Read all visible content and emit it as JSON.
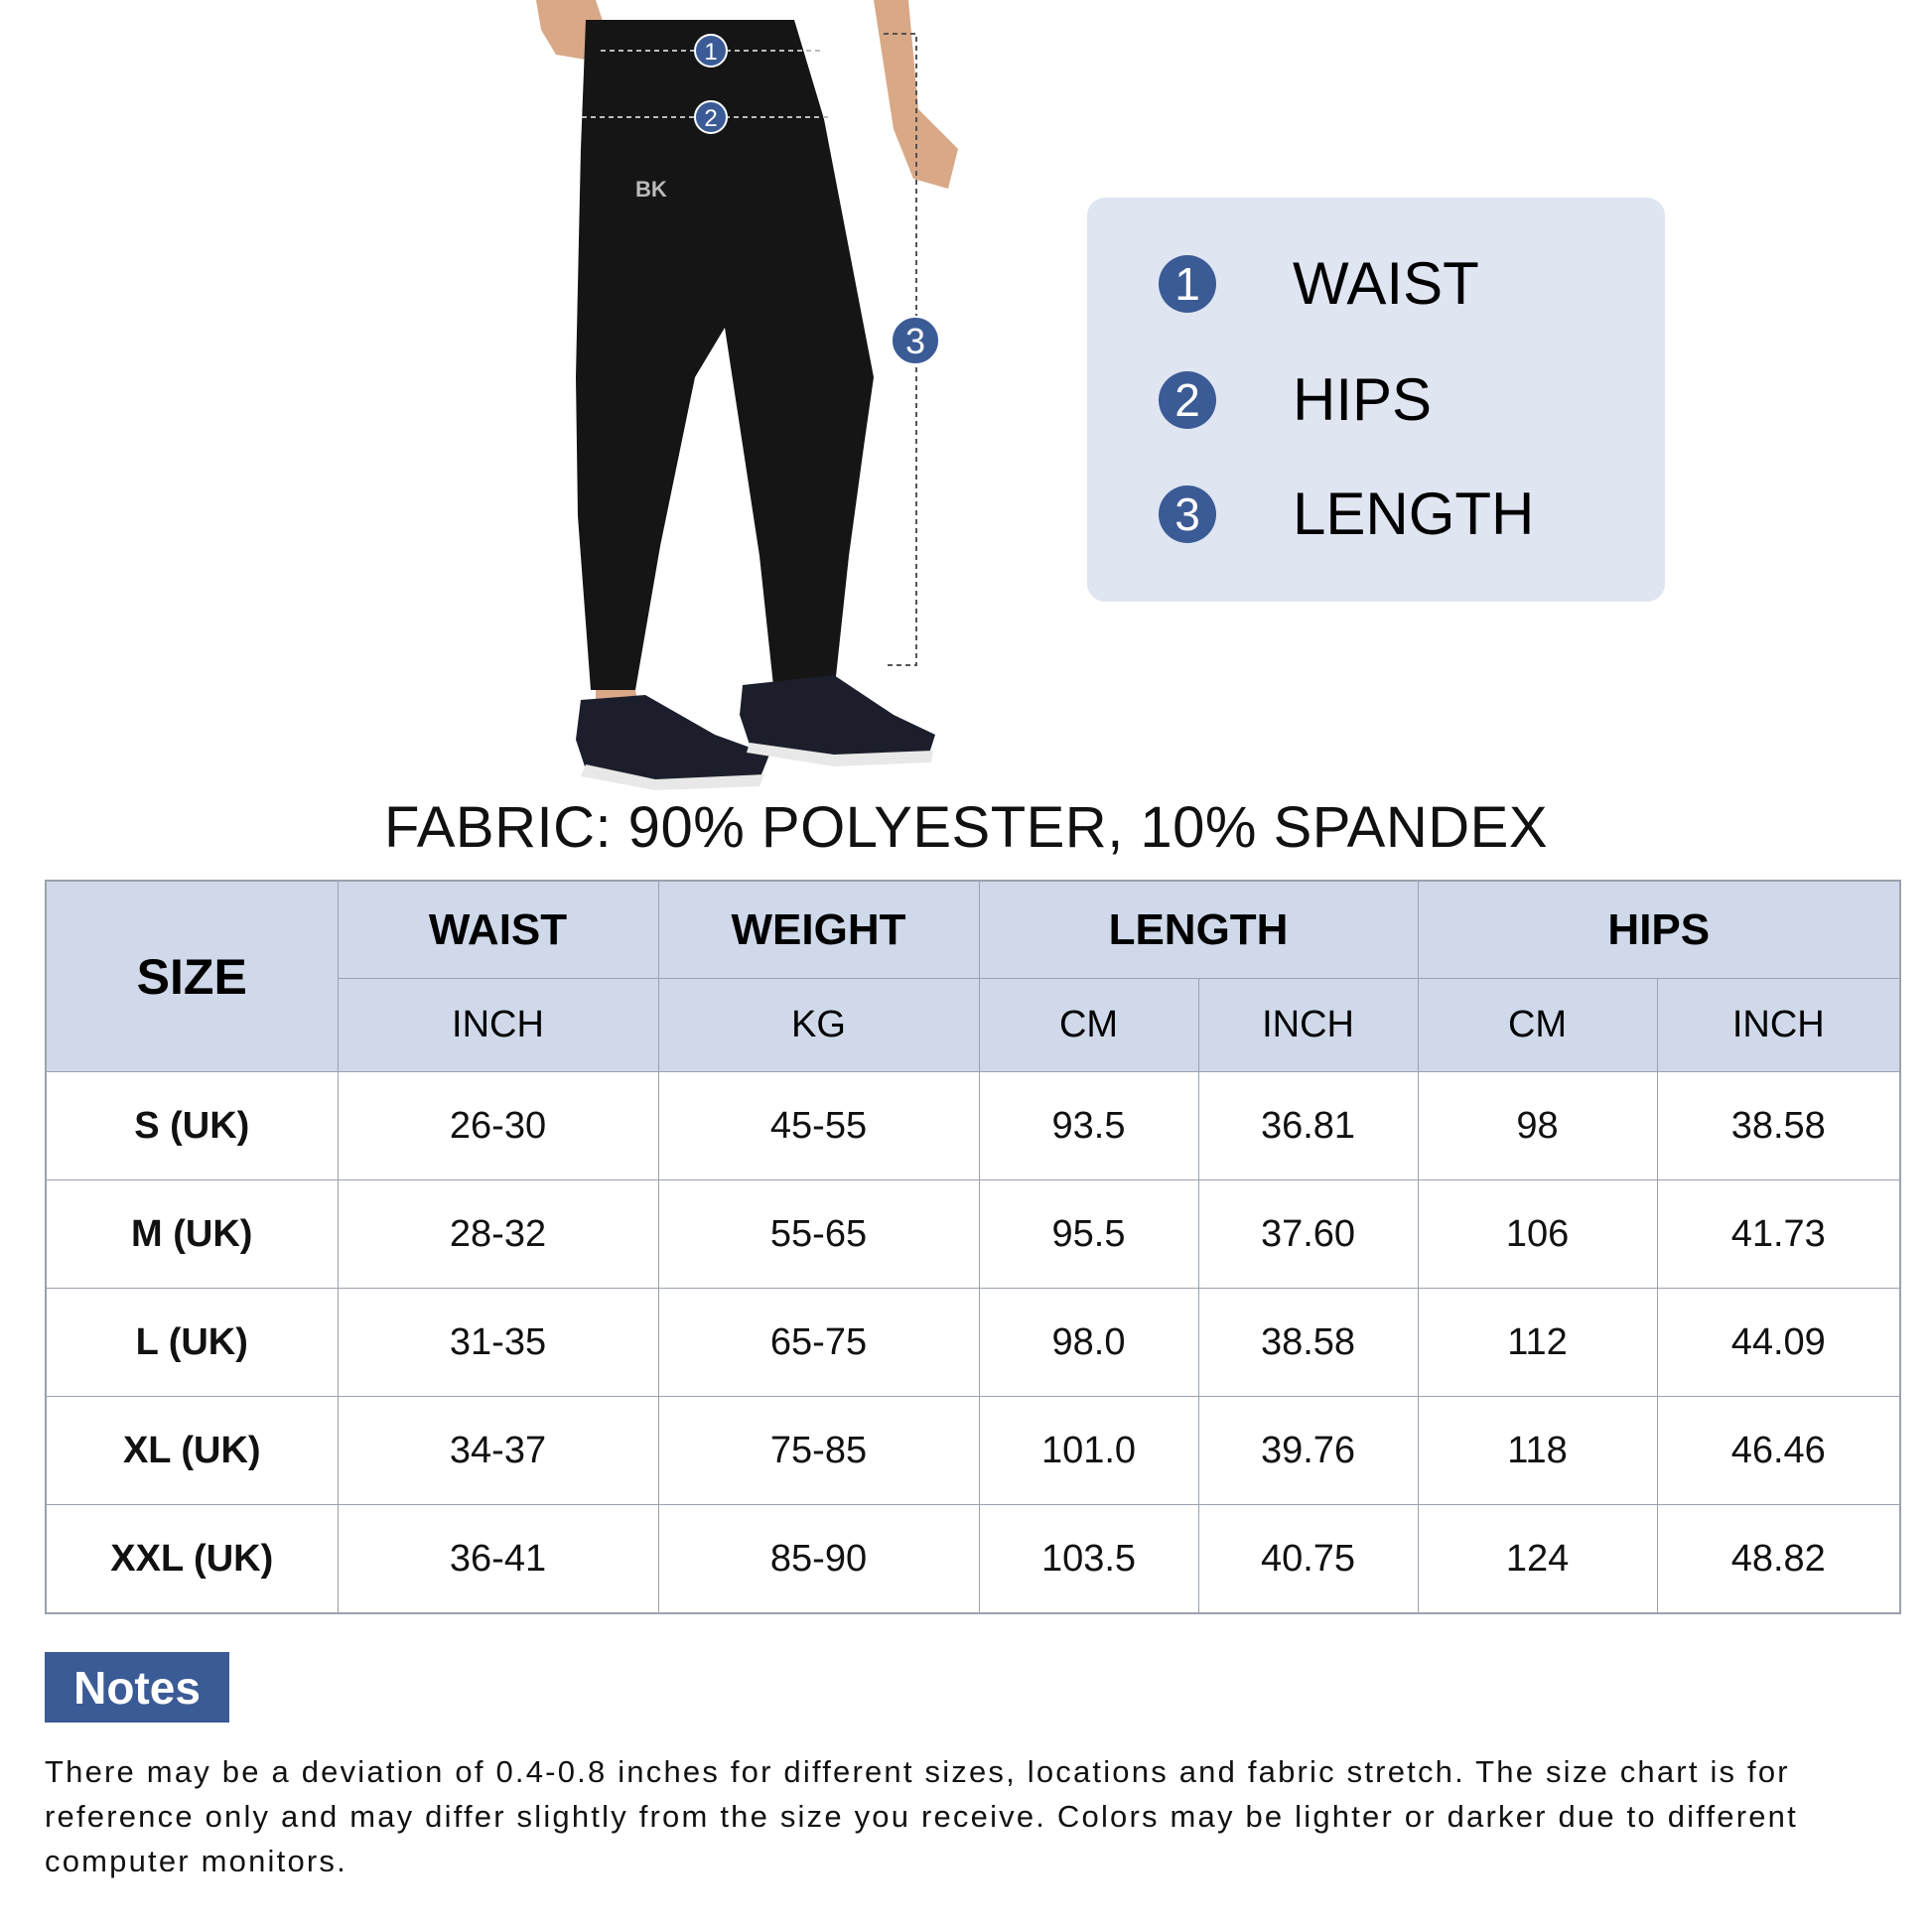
{
  "diagram": {
    "markers": [
      "1",
      "2",
      "3"
    ],
    "logo": "BK"
  },
  "legend": {
    "items": [
      {
        "num": "1",
        "label": "WAIST"
      },
      {
        "num": "2",
        "label": "HIPS"
      },
      {
        "num": "3",
        "label": "LENGTH"
      }
    ]
  },
  "fabric": "FABRIC: 90% POLYESTER, 10% SPANDEX",
  "table": {
    "size_header": "SIZE",
    "groups": [
      "WAIST",
      "WEIGHT",
      "LENGTH",
      "HIPS"
    ],
    "units": [
      "INCH",
      "KG",
      "CM",
      "INCH",
      "CM",
      "INCH"
    ],
    "rows": [
      [
        "S (UK)",
        "26-30",
        "45-55",
        "93.5",
        "36.81",
        "98",
        "38.58"
      ],
      [
        "M (UK)",
        "28-32",
        "55-65",
        "95.5",
        "37.60",
        "106",
        "41.73"
      ],
      [
        "L (UK)",
        "31-35",
        "65-75",
        "98.0",
        "38.58",
        "112",
        "44.09"
      ],
      [
        "XL (UK)",
        "34-37",
        "75-85",
        "101.0",
        "39.76",
        "118",
        "46.46"
      ],
      [
        "XXL (UK)",
        "36-41",
        "85-90",
        "103.5",
        "40.75",
        "124",
        "48.82"
      ]
    ]
  },
  "notes": {
    "title": "Notes",
    "text": "There may be a deviation of 0.4-0.8 inches for different sizes, locations and fabric stretch. The size chart is for reference only and may differ slightly from the size you receive. Colors may be lighter or darker due to different computer monitors."
  },
  "colors": {
    "accent": "#3b5b96",
    "header_bg": "#cfd9ea",
    "legend_bg": "#dfe5f1"
  }
}
